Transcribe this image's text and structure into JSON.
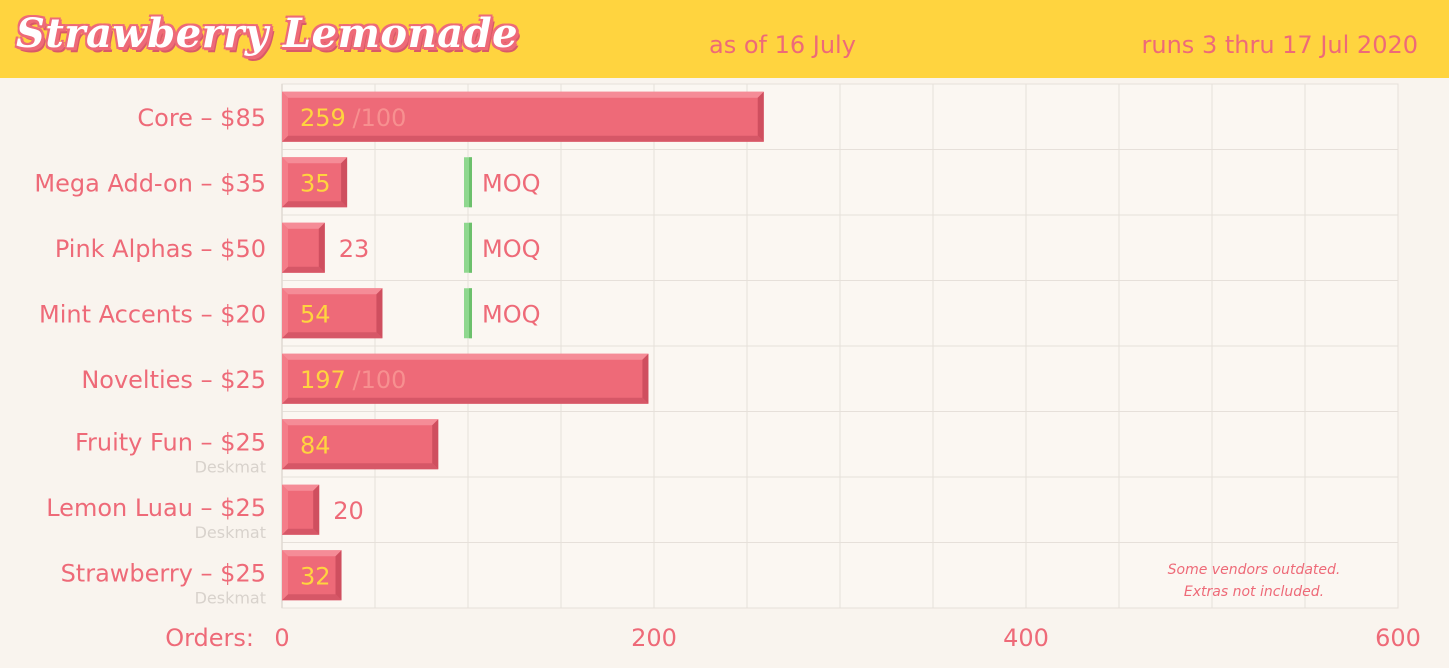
{
  "header": {
    "title": "Strawberry Lemonade",
    "as_of": "as of 16 July",
    "runs": "runs 3 thru 17 Jul 2020"
  },
  "colors": {
    "header_bg": "#ffd43f",
    "bar": "#ee6a78",
    "moq": "#8fd88f",
    "background": "#f9f4ee"
  },
  "chart_data": {
    "type": "bar",
    "orientation": "horizontal",
    "xlabel": "Orders:",
    "xlim": [
      0,
      600
    ],
    "xticks": [
      0,
      200,
      400,
      600
    ],
    "grid": true,
    "categories": [
      {
        "label": "Core – $85",
        "sub": "",
        "value": 259,
        "target": "/100",
        "moq": null
      },
      {
        "label": "Mega Add-on – $35",
        "sub": "",
        "value": 35,
        "target": "",
        "moq": 100
      },
      {
        "label": "Pink Alphas – $50",
        "sub": "",
        "value": 23,
        "target": "",
        "moq": 100
      },
      {
        "label": "Mint Accents – $20",
        "sub": "",
        "value": 54,
        "target": "",
        "moq": 100
      },
      {
        "label": "Novelties – $25",
        "sub": "",
        "value": 197,
        "target": "/100",
        "moq": null
      },
      {
        "label": "Fruity Fun – $25",
        "sub": "Deskmat",
        "value": 84,
        "target": "",
        "moq": null
      },
      {
        "label": "Lemon Luau – $25",
        "sub": "Deskmat",
        "value": 20,
        "target": "",
        "moq": null
      },
      {
        "label": "Strawberry – $25",
        "sub": "Deskmat",
        "value": 32,
        "target": "",
        "moq": null
      }
    ],
    "moq_label": "MOQ",
    "notes": [
      "Some vendors outdated.",
      "Extras not included."
    ]
  }
}
